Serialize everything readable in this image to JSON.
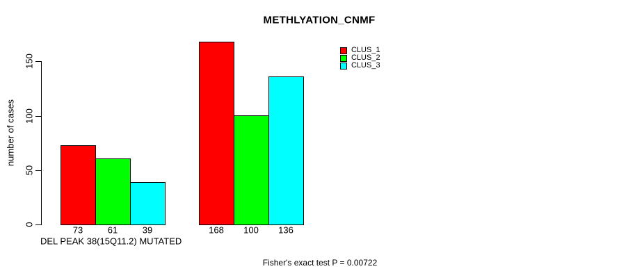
{
  "chart_data": {
    "type": "bar",
    "title": "METHLYATION_CNMF",
    "ylabel": "number of cases",
    "xlabel": "DEL PEAK 38(15Q11.2) MUTATED",
    "annotation": "Fisher's exact test P = 0.00722",
    "series": [
      {
        "name": "CLUS_1",
        "color": "#ff0000",
        "values": [
          73,
          168
        ]
      },
      {
        "name": "CLUS_2",
        "color": "#00ff00",
        "values": [
          61,
          100
        ]
      },
      {
        "name": "CLUS_3",
        "color": "#00ffff",
        "values": [
          39,
          136
        ]
      }
    ],
    "group_count": 2,
    "yticks": [
      0,
      50,
      100,
      150
    ],
    "ylim": [
      0,
      150
    ],
    "value_labels_shown": true,
    "grid": false,
    "legend_position": "top-right",
    "bar_border_color": "#000000",
    "background_color": "#ffffff",
    "text_color": "#000000"
  }
}
